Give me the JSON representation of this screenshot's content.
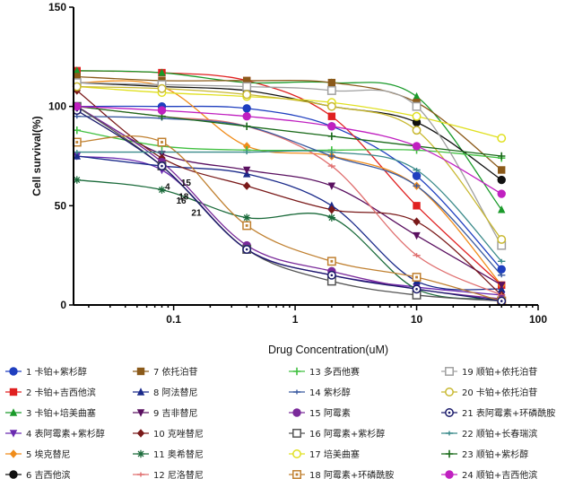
{
  "chart_data": {
    "type": "scatter",
    "xlabel": "Drug Concentration(uM)",
    "ylabel": "Cell survival(%)",
    "xscale": "log",
    "xlim": [
      0.015,
      100
    ],
    "ylim": [
      0,
      150
    ],
    "x_tick_labels": [
      "0.1",
      "1",
      "10",
      "100"
    ],
    "x_tick_values": [
      0.1,
      1,
      10,
      100
    ],
    "y_tick_labels": [
      "0",
      "50",
      "100",
      "150"
    ],
    "y_tick_values": [
      0,
      50,
      100,
      150
    ],
    "x": [
      0.016,
      0.08,
      0.4,
      2,
      10,
      50
    ],
    "annotations": [
      {
        "text": "4",
        "x": 0.085,
        "y": 58
      },
      {
        "text": "15",
        "x": 0.115,
        "y": 60
      },
      {
        "text": "18",
        "x": 0.11,
        "y": 53
      },
      {
        "text": "16",
        "x": 0.105,
        "y": 51
      },
      {
        "text": "21",
        "x": 0.14,
        "y": 45
      }
    ],
    "series": [
      {
        "name": "1 卡铂+紫杉醇",
        "color": "#1f3fbf",
        "marker": "circle",
        "values": [
          100,
          100,
          99,
          90,
          65,
          18
        ]
      },
      {
        "name": "2 卡铂+吉西他滨",
        "color": "#e02020",
        "marker": "square",
        "values": [
          118,
          117,
          113,
          95,
          50,
          10
        ]
      },
      {
        "name": "3 卡铂+培美曲塞",
        "color": "#1a9a2a",
        "marker": "triangle",
        "values": [
          118,
          117,
          112,
          112,
          105,
          48
        ]
      },
      {
        "name": "4 表阿霉素+紫杉醇",
        "color": "#6a2ab0",
        "marker": "triangle-down",
        "values": [
          75,
          68,
          28,
          15,
          9,
          5
        ]
      },
      {
        "name": "5 埃克替尼",
        "color": "#f08c1a",
        "marker": "diamond",
        "values": [
          112,
          110,
          80,
          75,
          60,
          10
        ]
      },
      {
        "name": "6 吉西他滨",
        "color": "#111111",
        "marker": "circle",
        "values": [
          112,
          110,
          108,
          100,
          92,
          63
        ]
      },
      {
        "name": "7 依托泊苷",
        "color": "#8b5a1a",
        "marker": "square",
        "values": [
          115,
          113,
          113,
          112,
          102,
          68
        ]
      },
      {
        "name": "8 阿法替尼",
        "color": "#1a2a8a",
        "marker": "triangle",
        "values": [
          75,
          70,
          66,
          50,
          12,
          8
        ]
      },
      {
        "name": "9 吉非替尼",
        "color": "#5a1060",
        "marker": "triangle-down",
        "values": [
          100,
          76,
          68,
          60,
          35,
          10
        ]
      },
      {
        "name": "10 克唑替尼",
        "color": "#7a1a1a",
        "marker": "diamond",
        "values": [
          108,
          74,
          60,
          48,
          42,
          5
        ]
      },
      {
        "name": "11 奥希替尼",
        "color": "#1a6a3a",
        "marker": "asterisk",
        "values": [
          63,
          58,
          44,
          44,
          8,
          3
        ]
      },
      {
        "name": "12 尼洛替尼",
        "color": "#e07070",
        "marker": "dash",
        "values": [
          100,
          95,
          90,
          70,
          25,
          5
        ]
      },
      {
        "name": "13 多西他赛",
        "color": "#40c040",
        "marker": "plus",
        "values": [
          88,
          80,
          78,
          78,
          78,
          74
        ]
      },
      {
        "name": "14 紫杉醇",
        "color": "#3a5aa0",
        "marker": "dash",
        "values": [
          95,
          94,
          90,
          75,
          60,
          15
        ]
      },
      {
        "name": "15 阿霉素",
        "color": "#7a2a9a",
        "marker": "circle",
        "values": [
          100,
          72,
          30,
          17,
          8,
          3
        ]
      },
      {
        "name": "16 阿霉素+紫杉醇",
        "color": "#555555",
        "marker": "square-open",
        "values": [
          100,
          70,
          28,
          12,
          5,
          2
        ]
      },
      {
        "name": "17 培美曲塞",
        "color": "#e0e020",
        "marker": "circle-open",
        "values": [
          110,
          107,
          105,
          102,
          95,
          84
        ]
      },
      {
        "name": "18 阿霉素+环磷酰胺",
        "color": "#c08030",
        "marker": "square-dot",
        "values": [
          82,
          82,
          40,
          22,
          14,
          2
        ]
      },
      {
        "name": "19 顺铂+依托泊苷",
        "color": "#a0a0a0",
        "marker": "square-open",
        "values": [
          112,
          111,
          110,
          108,
          100,
          30
        ]
      },
      {
        "name": "20 卡铂+依托泊苷",
        "color": "#c8b830",
        "marker": "circle-open",
        "values": [
          110,
          109,
          106,
          100,
          88,
          33
        ]
      },
      {
        "name": "21 表阿霉素+环磷酰胺",
        "color": "#1a1a6a",
        "marker": "circle-dot",
        "values": [
          98,
          70,
          28,
          15,
          8,
          2
        ]
      },
      {
        "name": "22 顺铂+长春瑞滨",
        "color": "#3a8a8a",
        "marker": "dash",
        "values": [
          77,
          77,
          77,
          77,
          68,
          22
        ]
      },
      {
        "name": "23 顺铂+紫杉醇",
        "color": "#1a6a1a",
        "marker": "plus",
        "values": [
          100,
          95,
          90,
          85,
          80,
          75
        ]
      },
      {
        "name": "24 顺铂+吉西他滨",
        "color": "#c020c0",
        "marker": "circle",
        "values": [
          100,
          98,
          95,
          90,
          80,
          56
        ]
      }
    ]
  }
}
